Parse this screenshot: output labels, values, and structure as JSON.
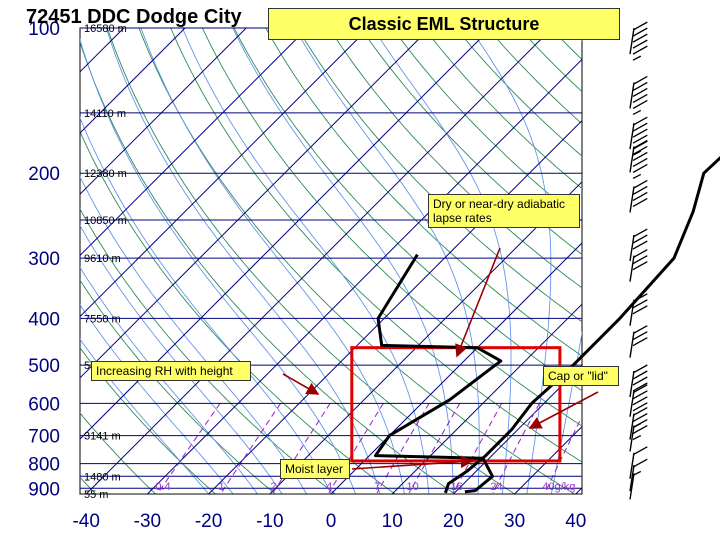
{
  "chart_data": {
    "type": "line",
    "title": "Classic EML Structure",
    "station": "72451 DDC Dodge City",
    "xlabel": "",
    "ylabel": "",
    "xlim": [
      -40,
      40
    ],
    "x_ticks": [
      "-40",
      "-30",
      "-20",
      "-10",
      "0",
      "10",
      "20",
      "30",
      "40"
    ],
    "pressure_levels": [
      {
        "p": 100,
        "label": "100",
        "height": "16580 m"
      },
      {
        "p": 150,
        "label": "",
        "height": "14110 m"
      },
      {
        "p": 200,
        "label": "200",
        "height": "12380 m"
      },
      {
        "p": 250,
        "label": "",
        "height": "10850 m"
      },
      {
        "p": 300,
        "label": "300",
        "height": "9610 m"
      },
      {
        "p": 400,
        "label": "400",
        "height": "7550 m"
      },
      {
        "p": 500,
        "label": "500",
        "height": "5870 m"
      },
      {
        "p": 600,
        "label": "600",
        "height": ""
      },
      {
        "p": 700,
        "label": "700",
        "height": "3141 m"
      },
      {
        "p": 800,
        "label": "800",
        "height": ""
      },
      {
        "p": 850,
        "label": "",
        "height": "1480 m"
      },
      {
        "p": 900,
        "label": "900",
        "height": ""
      },
      {
        "p": 925,
        "label": "",
        "height": "55 m"
      }
    ],
    "mixing_ratio_labels": [
      "0.4",
      "1",
      "2",
      "4",
      "7",
      "10",
      "16",
      "24",
      "40g/kg"
    ],
    "series": [
      {
        "name": "",
        "color": "#000000",
        "points": [
          {
            "p": 105,
            "t": 19.0
          },
          {
            "p": 130,
            "t": 9.0
          },
          {
            "p": 160,
            "t": 9.0
          },
          {
            "p": 200,
            "t": 8.5
          },
          {
            "p": 240,
            "t": 13.0
          },
          {
            "p": 300,
            "t": 17.5
          },
          {
            "p": 400,
            "t": 18.5
          },
          {
            "p": 460,
            "t": 18.5
          },
          {
            "p": 520,
            "t": 18.5
          },
          {
            "p": 600,
            "t": 18.0
          },
          {
            "p": 680,
            "t": 19.0
          },
          {
            "p": 770,
            "t": 19.0
          },
          {
            "p": 830,
            "t": 18.5
          },
          {
            "p": 880,
            "t": 17.5
          },
          {
            "p": 920,
            "t": 18.5
          }
        ]
      },
      {
        "name": "",
        "color": "#000000",
        "points": [
          {
            "p": 295,
            "t": -25.0
          },
          {
            "p": 400,
            "t": -21.0
          },
          {
            "p": 455,
            "t": -16.0
          },
          {
            "p": 460,
            "t": 0.0
          },
          {
            "p": 490,
            "t": 6.0
          },
          {
            "p": 590,
            "t": 4.0
          },
          {
            "p": 700,
            "t": 0.0
          },
          {
            "p": 770,
            "t": 1.0
          },
          {
            "p": 780,
            "t": 19.0
          },
          {
            "p": 850,
            "t": 23.5
          },
          {
            "p": 910,
            "t": 23.0
          },
          {
            "p": 915,
            "t": 21.5
          }
        ]
      }
    ],
    "wind_barbs": [
      {
        "p": 108,
        "speed": 55
      },
      {
        "p": 140,
        "speed": 55
      },
      {
        "p": 170,
        "speed": 55
      },
      {
        "p": 190,
        "speed": 55
      },
      {
        "p": 230,
        "speed": 40
      },
      {
        "p": 290,
        "speed": 30
      },
      {
        "p": 320,
        "speed": 30
      },
      {
        "p": 395,
        "speed": 30
      },
      {
        "p": 460,
        "speed": 30
      },
      {
        "p": 555,
        "speed": 40
      },
      {
        "p": 610,
        "speed": 40
      },
      {
        "p": 680,
        "speed": 25
      },
      {
        "p": 720,
        "speed": 25
      },
      {
        "p": 820,
        "speed": 10
      },
      {
        "p": 870,
        "speed": 10
      },
      {
        "p": 905,
        "speed": 5
      }
    ],
    "annotations": [
      {
        "id": "lapse",
        "text": "Dry or near-dry adiabatic lapse rates"
      },
      {
        "id": "rh",
        "text": "Increasing RH with height"
      },
      {
        "id": "cap",
        "text": "Cap or \"lid\""
      },
      {
        "id": "moist",
        "text": "Moist layer"
      }
    ],
    "highlight_box": {
      "p_top": 460,
      "p_bottom": 790,
      "t_left": -2,
      "t_right": 32
    },
    "colors": {
      "isobar": "#000080",
      "isotherm": "#000080",
      "dry_adiabat": "#2e8b57",
      "moist_adiabat": "#6495ed",
      "mixing_ratio": "#9932cc",
      "highlight": "#e00000",
      "arrow": "#990000",
      "callout_bg": "#ffff66"
    }
  }
}
